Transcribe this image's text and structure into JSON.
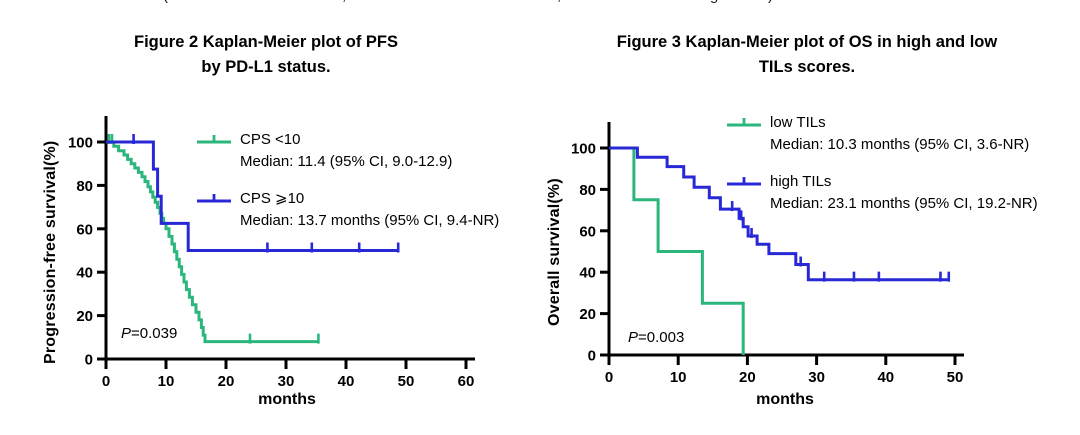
{
  "page_background": "#ffffff",
  "top_fragment": {
    "pieces": [
      "(",
      ",",
      ",",
      "g",
      ")"
    ]
  },
  "chart_data": [
    {
      "type": "km_survival_step",
      "title": [
        "Figure 2 Kaplan-Meier plot of PFS",
        "by PD-L1 status."
      ],
      "ylabel": "Progression-free survival(%)",
      "xlabel": "months",
      "p_value": {
        "italic": "P",
        "rest": "=0.039"
      },
      "xlim": [
        0,
        60
      ],
      "ylim": [
        0,
        100
      ],
      "x_ticks": [
        0,
        10,
        20,
        30,
        40,
        50,
        60
      ],
      "y_ticks": [
        0,
        20,
        40,
        60,
        80,
        100
      ],
      "grid": false,
      "legend_position": "upper right inside",
      "series": [
        {
          "name": "CPS <10",
          "median_label": "Median: 11.4 (95% CI, 9.0-12.9)",
          "color": "#2bb67c",
          "points": [
            [
              0,
              100
            ],
            [
              1.3,
              98
            ],
            [
              2.1,
              96
            ],
            [
              3.0,
              94
            ],
            [
              3.6,
              92
            ],
            [
              4.2,
              90
            ],
            [
              4.8,
              88
            ],
            [
              5.4,
              86
            ],
            [
              6.0,
              84
            ],
            [
              6.5,
              81.8
            ],
            [
              7.0,
              79.4
            ],
            [
              7.4,
              77
            ],
            [
              7.8,
              74.6
            ],
            [
              8.2,
              72.2
            ],
            [
              8.6,
              69.8
            ],
            [
              9.0,
              67.2
            ],
            [
              9.3,
              64.8
            ],
            [
              9.6,
              62.5
            ],
            [
              10.0,
              60
            ],
            [
              10.5,
              56.5
            ],
            [
              11.0,
              53
            ],
            [
              11.4,
              49.5
            ],
            [
              11.8,
              46
            ],
            [
              12.2,
              42.5
            ],
            [
              12.6,
              39
            ],
            [
              13.0,
              35.5
            ],
            [
              13.4,
              32
            ],
            [
              13.9,
              28.5
            ],
            [
              14.4,
              25
            ],
            [
              15.0,
              21.5
            ],
            [
              15.5,
              18
            ],
            [
              15.9,
              14.5
            ],
            [
              16.2,
              11
            ],
            [
              16.5,
              8
            ],
            [
              35.4,
              8
            ]
          ],
          "censor_marks": [
            [
              0.5,
              100
            ],
            [
              1.0,
              100
            ],
            [
              24.0,
              8
            ]
          ],
          "end_tick": true
        },
        {
          "name": "CPS ⩾10",
          "median_label": "Median: 13.7 months (95% CI, 9.4-NR)",
          "color": "#2828d6",
          "points": [
            [
              0,
              100
            ],
            [
              7.9,
              87.5
            ],
            [
              8.6,
              75
            ],
            [
              9.2,
              62.5
            ],
            [
              13.7,
              50
            ],
            [
              48.7,
              50
            ]
          ],
          "censor_marks": [
            [
              4.6,
              100
            ],
            [
              26.9,
              50
            ],
            [
              34.3,
              50
            ],
            [
              42.2,
              50
            ]
          ],
          "end_tick": true
        }
      ]
    },
    {
      "type": "km_survival_step",
      "title": [
        "Figure 3 Kaplan-Meier plot of OS in high and low",
        "TILs scores."
      ],
      "ylabel": "Overall survival(%)",
      "xlabel": "months",
      "p_value": {
        "italic": "P",
        "rest": "=0.003"
      },
      "xlim": [
        0,
        50
      ],
      "ylim": [
        0,
        100
      ],
      "x_ticks": [
        0,
        10,
        20,
        30,
        40,
        50
      ],
      "y_ticks": [
        0,
        20,
        40,
        60,
        80,
        100
      ],
      "grid": false,
      "legend_position": "upper right inside",
      "series": [
        {
          "name": "low TILs",
          "median_label": "Median: 10.3 months (95% CI, 3.6-NR)",
          "color": "#2bb67c",
          "points": [
            [
              0,
              100
            ],
            [
              3.6,
              75
            ],
            [
              7.1,
              50
            ],
            [
              13.5,
              25
            ],
            [
              19.4,
              0
            ]
          ],
          "censor_marks": [],
          "end_tick": false
        },
        {
          "name": "high TILs",
          "median_label": "Median: 23.1 months (95% CI, 19.2-NR)",
          "color": "#2828d6",
          "points": [
            [
              0,
              100
            ],
            [
              4.1,
              95.5
            ],
            [
              8.4,
              91
            ],
            [
              10.8,
              86
            ],
            [
              12.3,
              81
            ],
            [
              14.5,
              76
            ],
            [
              16.1,
              70.5
            ],
            [
              18.8,
              66
            ],
            [
              19.4,
              62
            ],
            [
              20.1,
              57.5
            ],
            [
              21.4,
              53.5
            ],
            [
              23.1,
              49
            ],
            [
              27.0,
              43.7
            ],
            [
              28.8,
              36.4
            ],
            [
              49.1,
              36.4
            ]
          ],
          "censor_marks": [
            [
              17.8,
              70.5
            ],
            [
              19.1,
              66
            ],
            [
              20.6,
              57.5
            ],
            [
              27.7,
              43.7
            ],
            [
              31.1,
              36.4
            ],
            [
              35.4,
              36.4
            ],
            [
              39.0,
              36.4
            ],
            [
              47.9,
              36.4
            ]
          ],
          "end_tick": true
        }
      ]
    }
  ]
}
